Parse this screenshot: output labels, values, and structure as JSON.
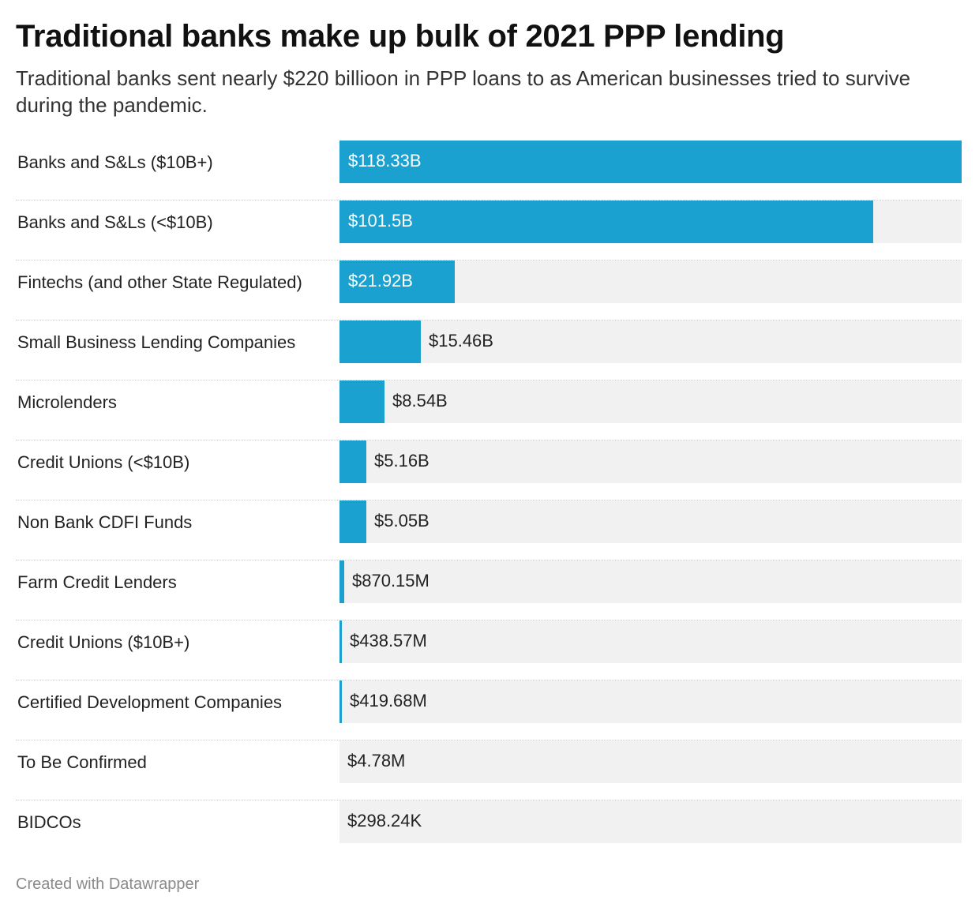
{
  "header": {
    "title": "Traditional banks make up bulk of 2021 PPP lending",
    "subtitle": "Traditional banks sent nearly $220 billioon in PPP loans to as American businesses tried to survive during the pandemic."
  },
  "footer": {
    "credit": "Created with Datawrapper"
  },
  "colors": {
    "bar": "#1aa1cf",
    "track": "#f1f1f1",
    "text": "#222222",
    "footer": "#8a8a8a"
  },
  "chart_data": {
    "type": "bar",
    "orientation": "horizontal",
    "title": "Traditional banks make up bulk of 2021 PPP lending",
    "subtitle": "Traditional banks sent nearly $220 billioon in PPP loans to as American businesses tried to survive during the pandemic.",
    "xlabel": "",
    "ylabel": "",
    "unit": "USD",
    "xlim": [
      0,
      118330000000
    ],
    "grid": false,
    "legend": "none",
    "categories": [
      "Banks and S&Ls ($10B+)",
      "Banks and S&Ls (<$10B)",
      "Fintechs (and other State Regulated)",
      "Small Business Lending Companies",
      "Microlenders",
      "Credit Unions (<$10B)",
      "Non Bank CDFI Funds",
      "Farm Credit Lenders",
      "Credit Unions ($10B+)",
      "Certified Development Companies",
      "To Be Confirmed",
      "BIDCOs"
    ],
    "values": [
      118330000000,
      101500000000,
      21920000000,
      15460000000,
      8540000000,
      5160000000,
      5050000000,
      870150000,
      438570000,
      419680000,
      4780000,
      298240
    ],
    "value_labels": [
      "$118.33B",
      "$101.5B",
      "$21.92B",
      "$15.46B",
      "$8.54B",
      "$5.16B",
      "$5.05B",
      "$870.15M",
      "$438.57M",
      "$419.68M",
      "$4.78M",
      "$298.24K"
    ]
  }
}
